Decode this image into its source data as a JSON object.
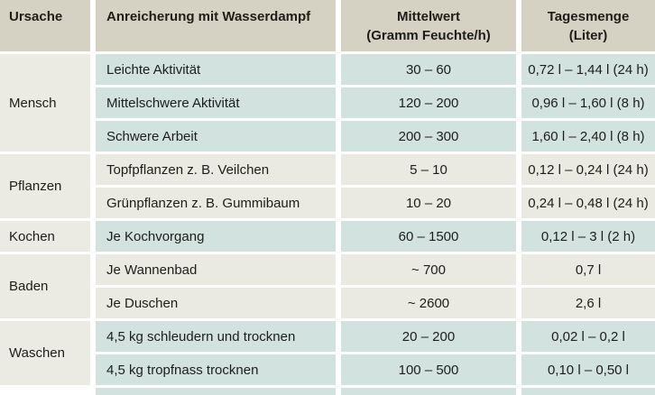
{
  "table": {
    "title_semantic": "Anreicherung der Raumluft mit Wasserdampf",
    "headers": {
      "ursache": "Ursache",
      "anreicherung": "Anreicherung mit Wasserdampf",
      "mittelwert_line1": "Mittelwert",
      "mittelwert_line2": "(Gramm Feuchte/h)",
      "tagesmenge_line1": "Tagesmenge",
      "tagesmenge_line2": "(Liter)"
    },
    "groups": [
      {
        "cause": "Mensch",
        "shade": "teal",
        "rows": [
          {
            "activity": "Leichte Aktivität",
            "mean": "30 – 60",
            "daily": "0,72 l – 1,44 l (24 h)"
          },
          {
            "activity": "Mittelschwere Aktivität",
            "mean": "120 – 200",
            "daily": "0,96 l – 1,60 l (8 h)"
          },
          {
            "activity": "Schwere Arbeit",
            "mean": "200 – 300",
            "daily": "1,60 l – 2,40 l (8 h)"
          }
        ]
      },
      {
        "cause": "Pflanzen",
        "shade": "light",
        "rows": [
          {
            "activity": "Topfpflanzen z. B. Veilchen",
            "mean": "5 – 10",
            "daily": "0,12 l – 0,24 l (24 h)"
          },
          {
            "activity": "Grünpflanzen z. B. Gummibaum",
            "mean": "10 – 20",
            "daily": "0,24 l – 0,48 l (24 h)"
          }
        ]
      },
      {
        "cause": "Kochen",
        "shade": "teal",
        "rows": [
          {
            "activity": "Je Kochvorgang",
            "mean": "60 – 1500",
            "daily": "0,12 l – 3 l (2 h)"
          }
        ]
      },
      {
        "cause": "Baden",
        "shade": "light",
        "rows": [
          {
            "activity": "Je Wannenbad",
            "mean": "~ 700",
            "daily": "0,7 l"
          },
          {
            "activity": "Je Duschen",
            "mean": "~ 2600",
            "daily": "2,6 l"
          }
        ]
      },
      {
        "cause": "Waschen",
        "shade": "teal",
        "rows": [
          {
            "activity": "4,5 kg schleudern und trocknen",
            "mean": "20 – 200",
            "daily": "0,02 l – 0,2 l"
          },
          {
            "activity": "4,5 kg tropfnass trocknen",
            "mean": "100 – 500",
            "daily": "0,10 l – 0,50 l"
          }
        ]
      }
    ],
    "colors": {
      "header_bg": "#d5d2c4",
      "teal_row_bg": "#d2e2de",
      "light_row_bg": "#eaeae2",
      "cause_cell_bg": "#ebebe3",
      "separator": "#ffffff",
      "text": "#1e1d1a"
    }
  }
}
